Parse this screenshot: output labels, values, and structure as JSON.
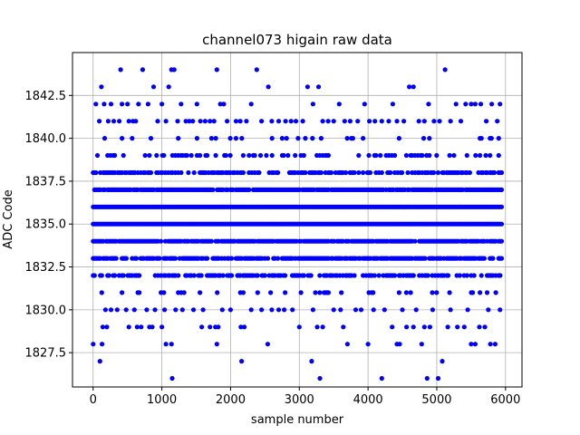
{
  "chart_data": {
    "type": "scatter",
    "title": "channel073 higain raw data",
    "xlabel": "sample number",
    "ylabel": "ADC Code",
    "xlim": [
      -300,
      6240
    ],
    "ylim": [
      1825.5,
      1845.0
    ],
    "xticks": [
      0,
      1000,
      2000,
      3000,
      4000,
      5000,
      6000
    ],
    "yticks": [
      1827.5,
      1830.0,
      1832.5,
      1835.0,
      1837.5,
      1840.0,
      1842.5
    ],
    "xtick_labels": [
      "0",
      "1000",
      "2000",
      "3000",
      "4000",
      "5000",
      "6000"
    ],
    "ytick_labels": [
      "1827.5",
      "1830.0",
      "1832.5",
      "1835.0",
      "1837.5",
      "1840.0",
      "1842.5"
    ],
    "grid": true,
    "marker_color": "#0000ff",
    "x_range_samples": [
      0,
      5950
    ],
    "levels": [
      {
        "value": 1831,
        "density": 0.18
      },
      {
        "value": 1832,
        "density": 0.55
      },
      {
        "value": 1833,
        "density": 0.75
      },
      {
        "value": 1834,
        "density": 0.9
      },
      {
        "value": 1835,
        "density": 1.0
      },
      {
        "value": 1836,
        "density": 1.0
      },
      {
        "value": 1837,
        "density": 0.9
      },
      {
        "value": 1838,
        "density": 0.6
      },
      {
        "value": 1839,
        "density": 0.3
      },
      {
        "value": 1840,
        "density": 0.12
      }
    ],
    "sparse_points": [
      [
        0,
        1828
      ],
      [
        100,
        1827
      ],
      [
        130,
        1828
      ],
      [
        180,
        1830
      ],
      [
        40,
        1842
      ],
      [
        120,
        1843
      ],
      [
        90,
        1841
      ],
      [
        160,
        1842
      ],
      [
        220,
        1841
      ],
      [
        300,
        1841
      ],
      [
        260,
        1842
      ],
      [
        380,
        1841
      ],
      [
        400,
        1844
      ],
      [
        420,
        1842
      ],
      [
        500,
        1842
      ],
      [
        520,
        1841
      ],
      [
        580,
        1841
      ],
      [
        620,
        1841
      ],
      [
        660,
        1842
      ],
      [
        720,
        1844
      ],
      [
        800,
        1842
      ],
      [
        880,
        1843
      ],
      [
        940,
        1841
      ],
      [
        1000,
        1842
      ],
      [
        1060,
        1841
      ],
      [
        1100,
        1843
      ],
      [
        1140,
        1844
      ],
      [
        1180,
        1844
      ],
      [
        1230,
        1841
      ],
      [
        1280,
        1842
      ],
      [
        1350,
        1841
      ],
      [
        1400,
        1841
      ],
      [
        1450,
        1841
      ],
      [
        1510,
        1842
      ],
      [
        1560,
        1841
      ],
      [
        1630,
        1841
      ],
      [
        1700,
        1841
      ],
      [
        1760,
        1841
      ],
      [
        1800,
        1844
      ],
      [
        1850,
        1842
      ],
      [
        1900,
        1842
      ],
      [
        1950,
        1841
      ],
      [
        2080,
        1841
      ],
      [
        2140,
        1841
      ],
      [
        2230,
        1841
      ],
      [
        2300,
        1842
      ],
      [
        2380,
        1844
      ],
      [
        2450,
        1841
      ],
      [
        2550,
        1843
      ],
      [
        2600,
        1841
      ],
      [
        2700,
        1841
      ],
      [
        2800,
        1841
      ],
      [
        2880,
        1841
      ],
      [
        2950,
        1841
      ],
      [
        3050,
        1841
      ],
      [
        3120,
        1843
      ],
      [
        3200,
        1842
      ],
      [
        3280,
        1843
      ],
      [
        3340,
        1841
      ],
      [
        3420,
        1841
      ],
      [
        3500,
        1841
      ],
      [
        3580,
        1842
      ],
      [
        3660,
        1841
      ],
      [
        3740,
        1841
      ],
      [
        3850,
        1841
      ],
      [
        3950,
        1842
      ],
      [
        4020,
        1841
      ],
      [
        4100,
        1841
      ],
      [
        4200,
        1841
      ],
      [
        4300,
        1841
      ],
      [
        4360,
        1842
      ],
      [
        4420,
        1841
      ],
      [
        4520,
        1841
      ],
      [
        4600,
        1843
      ],
      [
        4660,
        1843
      ],
      [
        4740,
        1841
      ],
      [
        4820,
        1841
      ],
      [
        4880,
        1842
      ],
      [
        4960,
        1841
      ],
      [
        5040,
        1841
      ],
      [
        5120,
        1844
      ],
      [
        5200,
        1841
      ],
      [
        5280,
        1842
      ],
      [
        5350,
        1841
      ],
      [
        5420,
        1842
      ],
      [
        5500,
        1842
      ],
      [
        5560,
        1842
      ],
      [
        5640,
        1842
      ],
      [
        5720,
        1841
      ],
      [
        5800,
        1842
      ],
      [
        5880,
        1841
      ],
      [
        5920,
        1842
      ],
      [
        200,
        1829
      ],
      [
        140,
        1829
      ],
      [
        260,
        1830
      ],
      [
        480,
        1830
      ],
      [
        520,
        1829
      ],
      [
        640,
        1829
      ],
      [
        700,
        1829
      ],
      [
        780,
        1830
      ],
      [
        820,
        1829
      ],
      [
        860,
        1829
      ],
      [
        1000,
        1829
      ],
      [
        1040,
        1830
      ],
      [
        1060,
        1828
      ],
      [
        1140,
        1828
      ],
      [
        1150,
        1826
      ],
      [
        1200,
        1830
      ],
      [
        1300,
        1830
      ],
      [
        1460,
        1830
      ],
      [
        1580,
        1829
      ],
      [
        1700,
        1829
      ],
      [
        1780,
        1829
      ],
      [
        1800,
        1828
      ],
      [
        1820,
        1829
      ],
      [
        1880,
        1830
      ],
      [
        2000,
        1830
      ],
      [
        2150,
        1829
      ],
      [
        2160,
        1827
      ],
      [
        2200,
        1829
      ],
      [
        2300,
        1830
      ],
      [
        2450,
        1830
      ],
      [
        2540,
        1828
      ],
      [
        2600,
        1830
      ],
      [
        2780,
        1830
      ],
      [
        2900,
        1830
      ],
      [
        3000,
        1829
      ],
      [
        3180,
        1827
      ],
      [
        3260,
        1829
      ],
      [
        3300,
        1826
      ],
      [
        3340,
        1829
      ],
      [
        3500,
        1830
      ],
      [
        3640,
        1829
      ],
      [
        3700,
        1828
      ],
      [
        3820,
        1830
      ],
      [
        4000,
        1828
      ],
      [
        4080,
        1830
      ],
      [
        4200,
        1826
      ],
      [
        4240,
        1830
      ],
      [
        4350,
        1829
      ],
      [
        4420,
        1828
      ],
      [
        4460,
        1828
      ],
      [
        4560,
        1829
      ],
      [
        4660,
        1829
      ],
      [
        4780,
        1828
      ],
      [
        4820,
        1829
      ],
      [
        4860,
        1826
      ],
      [
        4900,
        1829
      ],
      [
        5020,
        1826
      ],
      [
        5080,
        1827
      ],
      [
        5160,
        1829
      ],
      [
        5300,
        1829
      ],
      [
        5400,
        1829
      ],
      [
        5500,
        1828
      ],
      [
        5560,
        1828
      ],
      [
        5620,
        1829
      ],
      [
        5700,
        1829
      ],
      [
        5780,
        1828
      ],
      [
        5850,
        1828
      ],
      [
        5920,
        1830
      ],
      [
        5750,
        1830
      ],
      [
        5450,
        1830
      ],
      [
        5200,
        1830
      ],
      [
        4940,
        1830
      ],
      [
        4700,
        1830
      ],
      [
        4500,
        1830
      ],
      [
        3900,
        1830
      ],
      [
        3600,
        1830
      ],
      [
        3200,
        1830
      ],
      [
        2700,
        1830
      ],
      [
        1600,
        1830
      ],
      [
        900,
        1830
      ],
      [
        600,
        1830
      ],
      [
        350,
        1830
      ]
    ]
  }
}
